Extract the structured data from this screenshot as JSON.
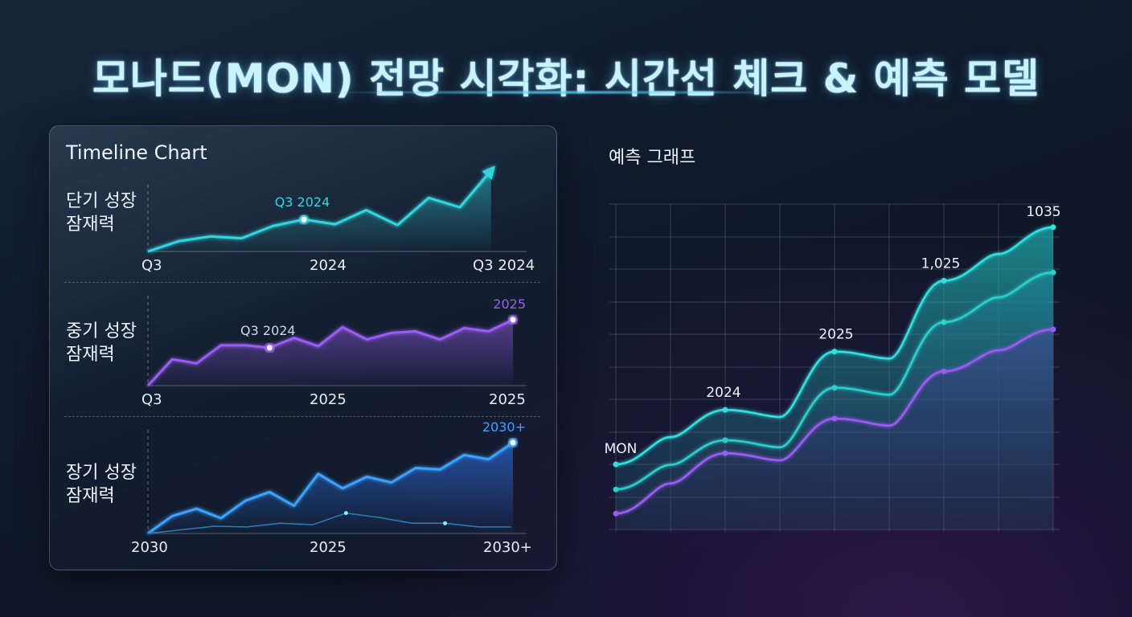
{
  "page": {
    "title": "모나드(MON) 전망 시각화: 시간선 체크 & 예측 모델"
  },
  "left_panel": {
    "title": "Timeline Chart",
    "rows": [
      {
        "label_line1": "단기 성장",
        "label_line2": "잠재력",
        "ticks": [
          "Q3",
          "2024",
          "Q3 2024"
        ],
        "annotation": "Q3 2024",
        "end_label": "",
        "color": "#2fd6df"
      },
      {
        "label_line1": "중기 성장",
        "label_line2": "잠재력",
        "ticks": [
          "Q3",
          "2025",
          "2025"
        ],
        "annotation": "Q3 2024",
        "end_label": "2025",
        "color": "#9a5cf2"
      },
      {
        "label_line1": "장기 성장",
        "label_line2": "잠재력",
        "ticks": [
          "2030",
          "2025",
          "2030+"
        ],
        "annotation": "",
        "end_label": "2030+",
        "color": "#3aa2ff"
      }
    ]
  },
  "right_panel": {
    "title": "예측 그래프"
  },
  "chart_data": [
    {
      "type": "line",
      "title": "",
      "subplot": "단기 성장 잠재력",
      "x_ticks": [
        "Q3",
        "2024",
        "Q3 2024"
      ],
      "series": [
        {
          "values": [
            0,
            11,
            16,
            14,
            27,
            34,
            29,
            44,
            28,
            57,
            47,
            86
          ],
          "color": "#2fd6df"
        }
      ],
      "annotations": [
        {
          "text": "Q3 2024",
          "at_index": 5
        }
      ],
      "end_marker": "arrow"
    },
    {
      "type": "area",
      "title": "",
      "subplot": "중기 성장 잠재력",
      "x_ticks": [
        "Q3",
        "2025",
        "2025"
      ],
      "series": [
        {
          "values": [
            0,
            32,
            27,
            49,
            49,
            46,
            58,
            48,
            71,
            56,
            64,
            66,
            56,
            70,
            66,
            80
          ],
          "color": "#9a5cf2"
        }
      ],
      "annotations": [
        {
          "text": "Q3 2024",
          "at_index": 5
        },
        {
          "text": "2025",
          "at_index": 15
        }
      ]
    },
    {
      "type": "area",
      "title": "",
      "subplot": "장기 성장 잠재력",
      "x_ticks": [
        "2030",
        "2025",
        "2030+"
      ],
      "series": [
        {
          "values": [
            0,
            24,
            34,
            21,
            45,
            57,
            38,
            82,
            62,
            78,
            70,
            90,
            88,
            108,
            102,
            125
          ],
          "color": "#3aa2ff"
        },
        {
          "values": [
            0,
            5,
            10,
            9,
            14,
            12,
            28,
            22,
            14,
            14,
            9,
            9
          ],
          "color": "#2a7fb5"
        }
      ],
      "annotations": [
        {
          "text": "2030+",
          "at_index": 15
        }
      ]
    },
    {
      "type": "area",
      "title": "예측 그래프",
      "x_ticks": [],
      "grid": true,
      "series": [
        {
          "values": [
            140,
            253,
            374,
            521,
            632
          ],
          "color": "#2fd6df"
        },
        {
          "values": [
            88,
            190,
            299,
            435,
            538
          ],
          "color": "#27c9c2"
        },
        {
          "values": [
            38,
            163,
            235,
            333,
            420
          ],
          "color": "#9a5cf2"
        }
      ],
      "labels": [
        "MON",
        "2024",
        "2025",
        "1,025",
        "1035"
      ]
    }
  ]
}
